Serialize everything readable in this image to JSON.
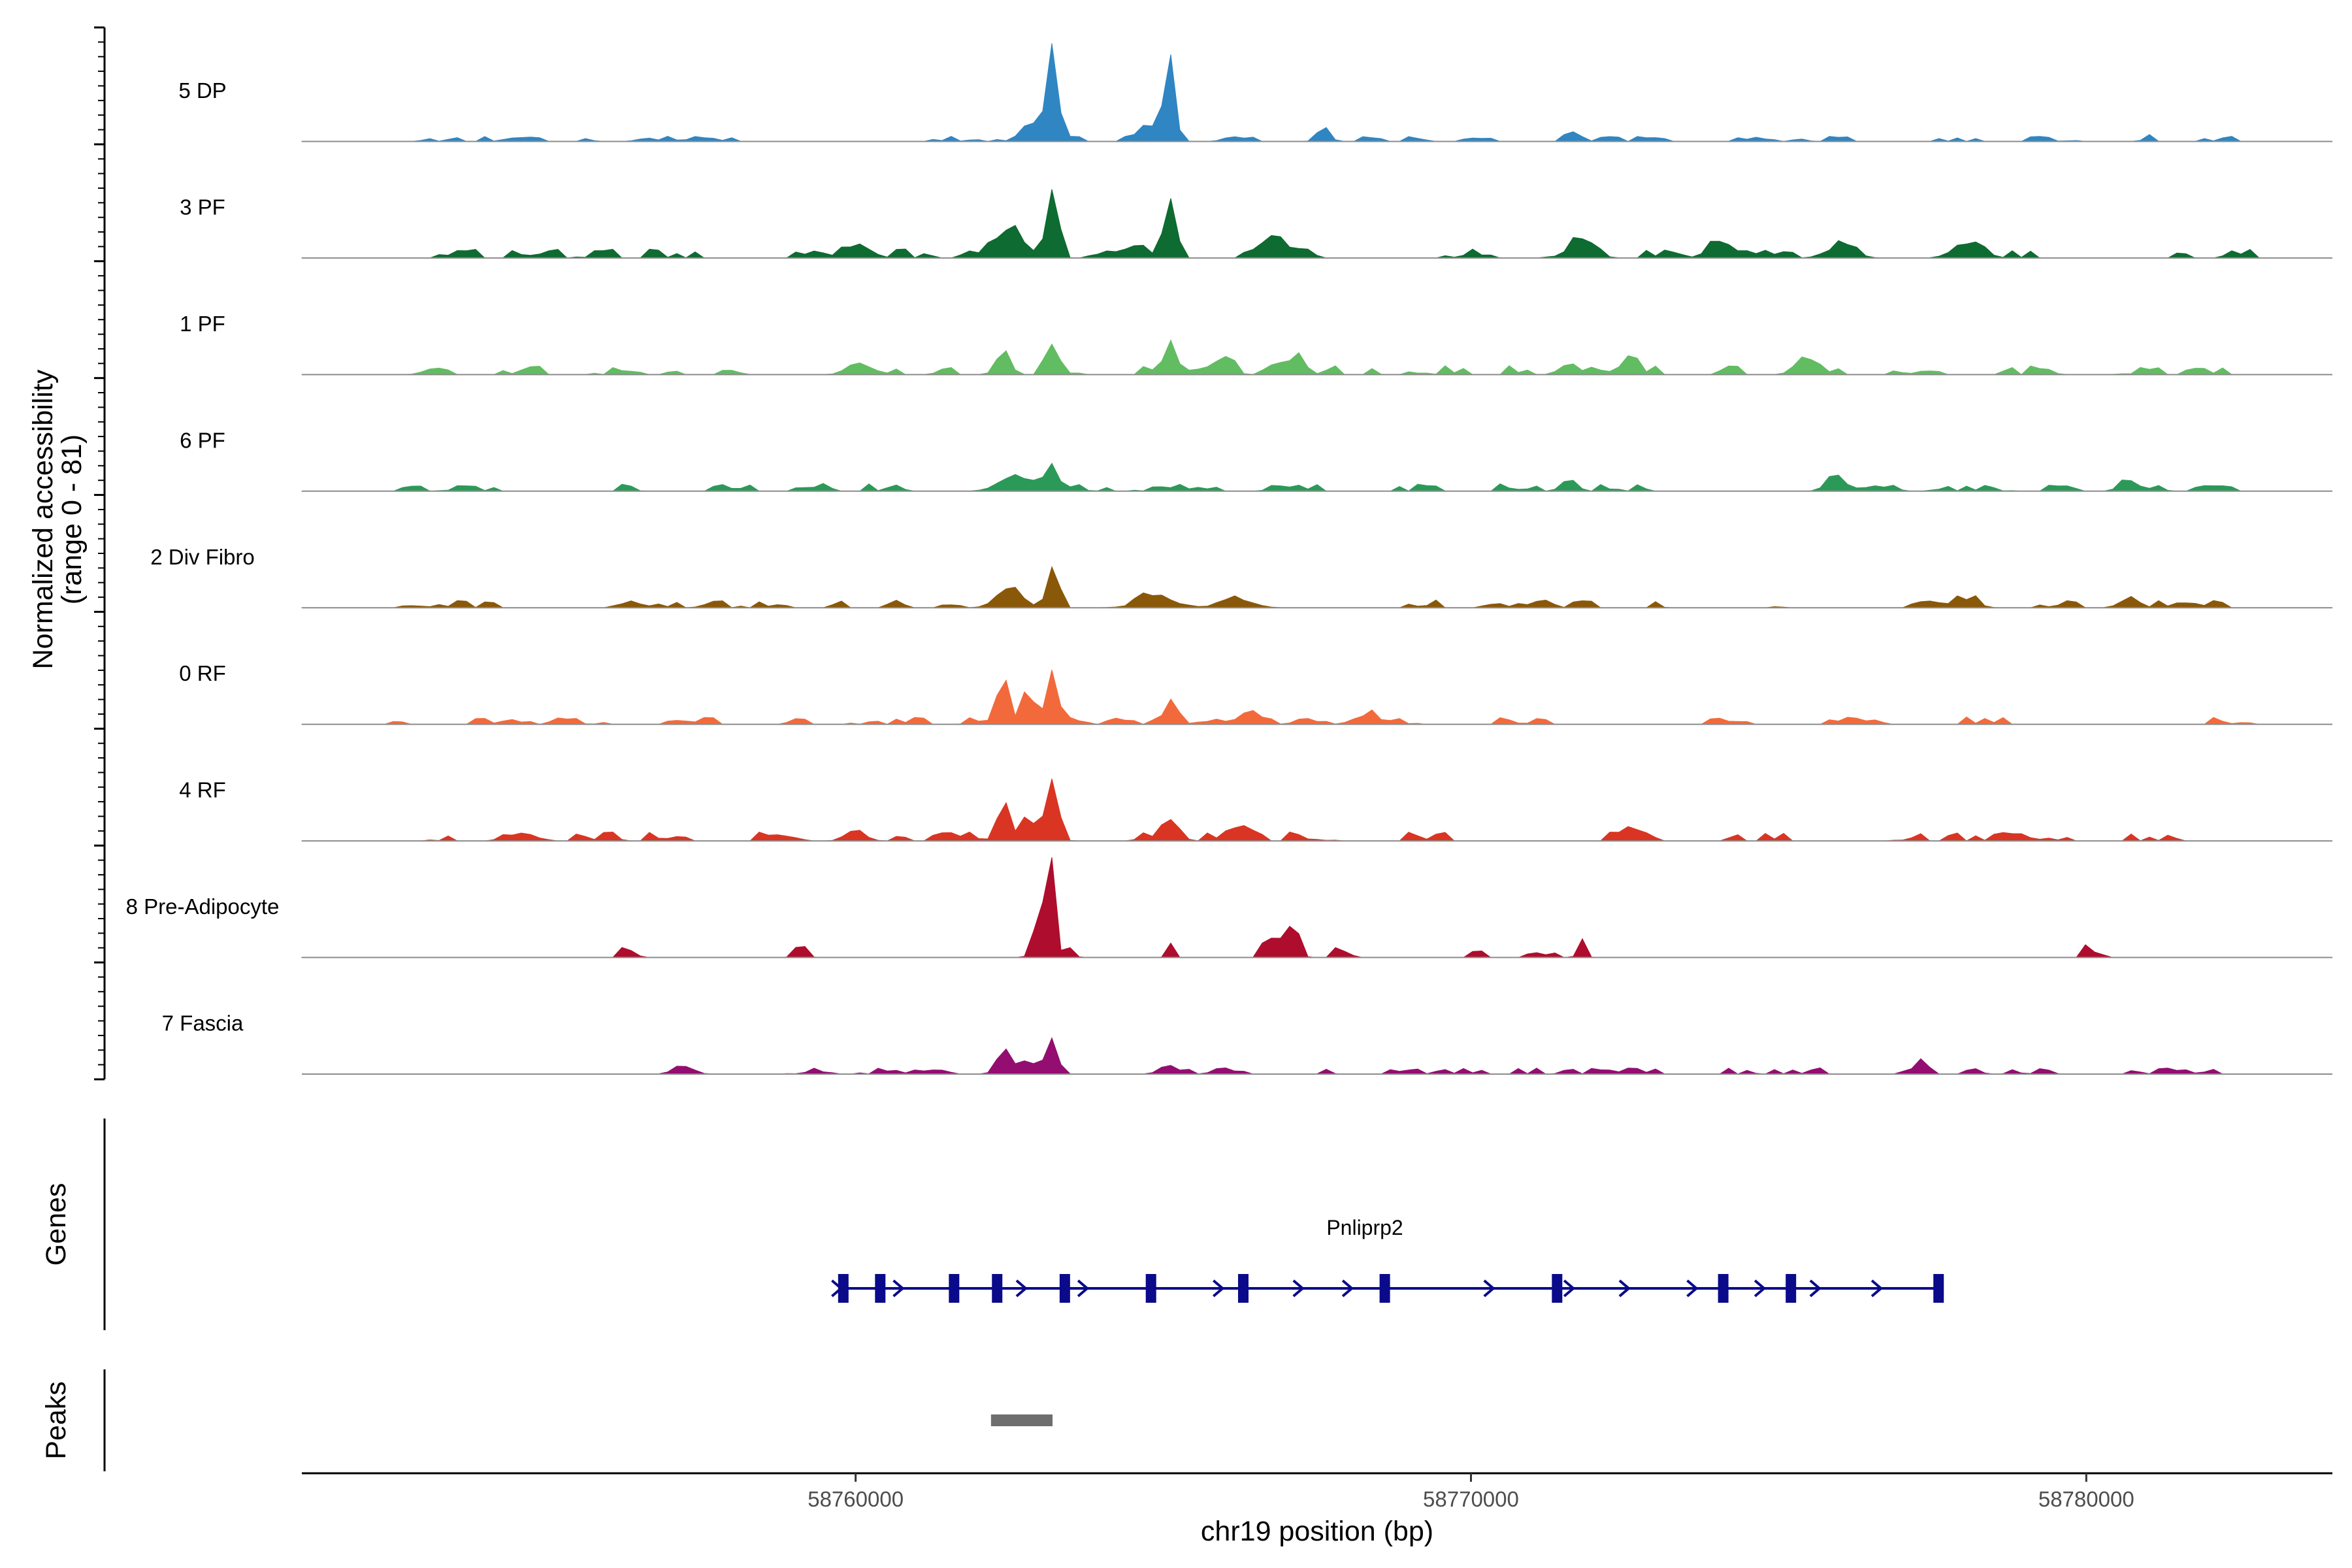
{
  "chart_data": {
    "type": "area",
    "y_axis_title": [
      "Normalized accessibility",
      "(range 0 - 81)"
    ],
    "x_axis_title": "chr19 position (bp)",
    "xlim": [
      58751000,
      58784000
    ],
    "ylim": [
      0,
      81
    ],
    "x_ticks": [
      {
        "value": 58760000,
        "label": "58760000"
      },
      {
        "value": 58770000,
        "label": "58770000"
      },
      {
        "value": 58780000,
        "label": "58780000"
      }
    ],
    "tracks": [
      {
        "name": "5 DP",
        "color": "#2f86c3",
        "noise": 4,
        "noise_span": [
          58752400,
          58782800
        ],
        "peaks": [
          [
            58763200,
            62,
            90
          ],
          [
            58765100,
            60,
            90
          ],
          [
            58762900,
            12,
            180
          ],
          [
            58764800,
            12,
            150
          ],
          [
            58767600,
            14,
            90
          ],
          [
            58771600,
            10,
            60
          ],
          [
            58781000,
            6,
            60
          ]
        ]
      },
      {
        "name": "3 PF",
        "color": "#0e6b31",
        "noise": 7,
        "noise_span": [
          58752400,
          58782800
        ],
        "peaks": [
          [
            58763200,
            45,
            90
          ],
          [
            58765100,
            38,
            90
          ],
          [
            58762500,
            18,
            260
          ],
          [
            58764600,
            10,
            150
          ],
          [
            58766800,
            12,
            200
          ],
          [
            58760000,
            10,
            220
          ],
          [
            58771800,
            12,
            200
          ],
          [
            58774000,
            10,
            180
          ],
          [
            58776000,
            9,
            220
          ],
          [
            58778000,
            10,
            200
          ]
        ]
      },
      {
        "name": "1 PF",
        "color": "#62bc62",
        "noise": 7,
        "noise_span": [
          58752400,
          58782800
        ],
        "peaks": [
          [
            58763200,
            25,
            90
          ],
          [
            58762400,
            18,
            110
          ],
          [
            58765100,
            25,
            90
          ],
          [
            58767100,
            12,
            160
          ],
          [
            58766000,
            8,
            150
          ],
          [
            58772600,
            12,
            120
          ],
          [
            58771600,
            8,
            150
          ],
          [
            58775400,
            9,
            150
          ],
          [
            58760000,
            9,
            160
          ]
        ]
      },
      {
        "name": "6 PF",
        "color": "#2b9a58",
        "noise": 6,
        "noise_span": [
          58752400,
          58782800
        ],
        "peaks": [
          [
            58763200,
            24,
            90
          ],
          [
            58762600,
            12,
            250
          ],
          [
            58771600,
            10,
            120
          ],
          [
            58775900,
            10,
            140
          ],
          [
            58780700,
            9,
            140
          ]
        ]
      },
      {
        "name": "2 Div Fibro",
        "color": "#8a5809",
        "noise": 6,
        "noise_span": [
          58752400,
          58782800
        ],
        "peaks": [
          [
            58763200,
            30,
            90
          ],
          [
            58762500,
            16,
            200
          ],
          [
            58764900,
            8,
            300
          ],
          [
            58766200,
            7,
            250
          ],
          [
            58778000,
            7,
            200
          ],
          [
            58780700,
            8,
            150
          ]
        ]
      },
      {
        "name": "0 RF",
        "color": "#f26a3c",
        "noise": 6,
        "noise_span": [
          58752400,
          58782800
        ],
        "peaks": [
          [
            58762400,
            36,
            90
          ],
          [
            58763200,
            36,
            90
          ],
          [
            58762800,
            24,
            100
          ],
          [
            58765100,
            18,
            100
          ],
          [
            58766400,
            8,
            200
          ],
          [
            58768300,
            7,
            200
          ]
        ]
      },
      {
        "name": "4 RF",
        "color": "#da3523",
        "noise": 7,
        "noise_span": [
          58752400,
          58782800
        ],
        "peaks": [
          [
            58763200,
            55,
            90
          ],
          [
            58762400,
            33,
            100
          ],
          [
            58762800,
            25,
            90
          ],
          [
            58765100,
            15,
            150
          ],
          [
            58766300,
            9,
            150
          ],
          [
            58772600,
            10,
            120
          ],
          [
            58760000,
            9,
            150
          ]
        ]
      },
      {
        "name": "8 Pre-Adipocyte",
        "color": "#af0d2d",
        "noise": 0,
        "noise_span": [
          58752400,
          58782800
        ],
        "peaks": [
          [
            58763200,
            78,
            60
          ],
          [
            58763050,
            35,
            80
          ],
          [
            58762900,
            14,
            70
          ],
          [
            58763500,
            8,
            60
          ],
          [
            58756200,
            9,
            50
          ],
          [
            58756400,
            9,
            50
          ],
          [
            58759000,
            9,
            50
          ],
          [
            58759200,
            9,
            50
          ],
          [
            58765100,
            12,
            50
          ],
          [
            58766700,
            20,
            80
          ],
          [
            58767000,
            26,
            80
          ],
          [
            58767200,
            18,
            60
          ],
          [
            58767800,
            9,
            50
          ],
          [
            58768000,
            9,
            50
          ],
          [
            58770100,
            14,
            50
          ],
          [
            58771000,
            9,
            50
          ],
          [
            58771300,
            9,
            50
          ],
          [
            58771800,
            14,
            60
          ],
          [
            58780000,
            9,
            50
          ],
          [
            58780200,
            9,
            50
          ]
        ]
      },
      {
        "name": "7 Fascia",
        "color": "#930e70",
        "noise": 5,
        "noise_span": [
          58753500,
          58782200
        ],
        "peaks": [
          [
            58763200,
            27,
            90
          ],
          [
            58762400,
            18,
            110
          ],
          [
            58762800,
            10,
            150
          ],
          [
            58765100,
            7,
            150
          ],
          [
            58777300,
            8,
            100
          ],
          [
            58757200,
            7,
            150
          ]
        ]
      }
    ],
    "genes_panel_title": "Genes",
    "peaks_panel_title": "Peaks",
    "gene": {
      "name": "Pnliprp2",
      "color": "#0a0a8a",
      "start": 58759800,
      "end": 58777600,
      "exons": [
        58759800,
        58760400,
        58761600,
        58762300,
        58763400,
        58764800,
        58766300,
        58768600,
        58771400,
        58774100,
        58775200,
        58777600
      ],
      "arrows": [
        58759700,
        58760700,
        58762700,
        58763700,
        58765900,
        58767200,
        58768000,
        58770300,
        58771600,
        58772500,
        58773600,
        58774700,
        58775600,
        58776600
      ]
    },
    "peak_regions": [
      {
        "start": 58762200,
        "end": 58763200,
        "color": "#6e6e6e"
      }
    ]
  }
}
